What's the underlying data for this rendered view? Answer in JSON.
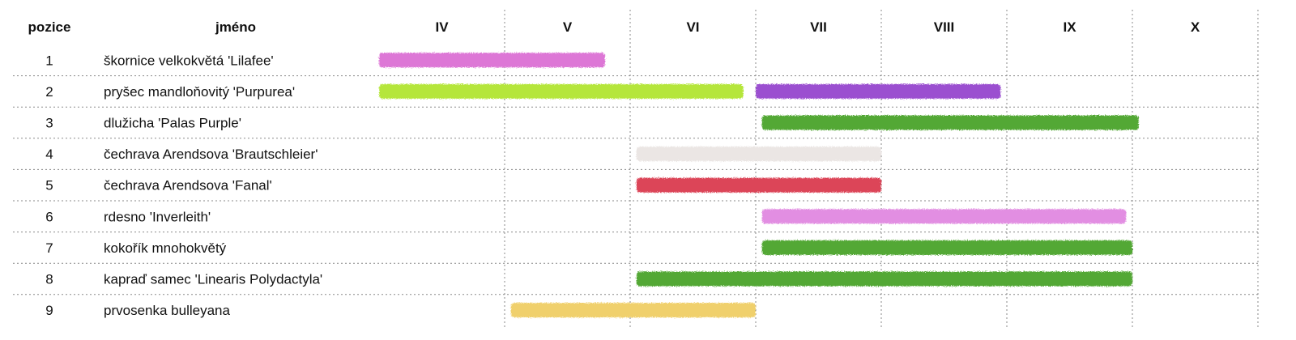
{
  "chart_data": {
    "type": "bar",
    "columns": {
      "position": "pozice",
      "name": "jméno"
    },
    "months": [
      "IV",
      "V",
      "VI",
      "VII",
      "VIII",
      "IX",
      "X"
    ],
    "rows": [
      {
        "position": "1",
        "name": "škornice velkokvětá 'Lilafee'",
        "periods": [
          {
            "start": 4.0,
            "end": 5.8,
            "color": "#dd77d6"
          }
        ]
      },
      {
        "position": "2",
        "name": "pryšec mandloňovitý 'Purpurea'",
        "periods": [
          {
            "start": 4.0,
            "end": 6.9,
            "color": "#b5e63b"
          },
          {
            "start": 7.0,
            "end": 8.95,
            "color": "#9b4fd0"
          }
        ]
      },
      {
        "position": "3",
        "name": "dlužicha 'Palas Purple'",
        "periods": [
          {
            "start": 7.05,
            "end": 10.05,
            "color": "#53a834"
          }
        ]
      },
      {
        "position": "4",
        "name": "čechrava Arendsova 'Brautschleier'",
        "periods": [
          {
            "start": 6.05,
            "end": 8.0,
            "color": "#ebe6e4"
          }
        ]
      },
      {
        "position": "5",
        "name": "čechrava Arendsova 'Fanal'",
        "periods": [
          {
            "start": 6.05,
            "end": 8.0,
            "color": "#dc4459"
          }
        ]
      },
      {
        "position": "6",
        "name": "rdesno 'Inverleith'",
        "periods": [
          {
            "start": 7.05,
            "end": 9.95,
            "color": "#e28ee2"
          }
        ]
      },
      {
        "position": "7",
        "name": "kokořík mnohokvětý",
        "periods": [
          {
            "start": 7.05,
            "end": 10.0,
            "color": "#53a834"
          }
        ]
      },
      {
        "position": "8",
        "name": "kapraď samec 'Linearis Polydactyla'",
        "periods": [
          {
            "start": 6.05,
            "end": 10.0,
            "color": "#53a834"
          }
        ]
      },
      {
        "position": "9",
        "name": "prvosenka bulleyana",
        "periods": [
          {
            "start": 5.05,
            "end": 7.0,
            "color": "#f0d06c"
          }
        ]
      }
    ],
    "grid": true
  }
}
